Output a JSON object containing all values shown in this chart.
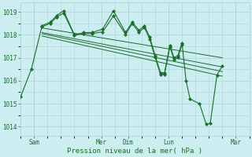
{
  "bg_color": "#cceef0",
  "grid_color": "#aad4d8",
  "line_color": "#1a6e2a",
  "ylabel_ticks": [
    1014,
    1015,
    1016,
    1017,
    1018,
    1019
  ],
  "xlabel": "Pression niveau de la mer( hPa )",
  "x_tick_labels": [
    "Sam",
    "Mer",
    "Dim",
    "Lun",
    "Mar"
  ],
  "x_tick_positions": [
    1,
    6,
    8,
    11,
    16
  ],
  "xlim": [
    0,
    17
  ],
  "ylim": [
    1013.6,
    1019.4
  ],
  "series0": [
    [
      0,
      1015.3
    ],
    [
      0.8,
      1016.5
    ],
    [
      1.6,
      1018.4
    ],
    [
      2.2,
      1018.55
    ],
    [
      2.7,
      1018.85
    ],
    [
      3.2,
      1019.05
    ],
    [
      4.0,
      1018.0
    ],
    [
      4.7,
      1018.1
    ],
    [
      5.3,
      1018.1
    ],
    [
      6.1,
      1018.25
    ],
    [
      6.9,
      1019.05
    ],
    [
      7.8,
      1018.1
    ],
    [
      8.3,
      1018.55
    ],
    [
      8.8,
      1018.2
    ],
    [
      9.2,
      1018.4
    ],
    [
      9.6,
      1017.9
    ],
    [
      10.0,
      1017.1
    ],
    [
      10.4,
      1016.35
    ],
    [
      10.7,
      1016.35
    ],
    [
      11.1,
      1017.55
    ],
    [
      11.4,
      1017.0
    ],
    [
      11.7,
      1017.1
    ],
    [
      12.0,
      1017.65
    ],
    [
      12.3,
      1016.0
    ],
    [
      12.6,
      1015.2
    ],
    [
      13.3,
      1015.0
    ],
    [
      13.8,
      1014.1
    ],
    [
      14.1,
      1014.15
    ],
    [
      14.6,
      1016.25
    ],
    [
      15.0,
      1016.65
    ]
  ],
  "series1": [
    [
      1.6,
      1018.35
    ],
    [
      2.2,
      1018.5
    ],
    [
      2.7,
      1018.78
    ],
    [
      3.2,
      1018.95
    ],
    [
      4.0,
      1017.98
    ],
    [
      4.7,
      1018.05
    ],
    [
      5.3,
      1018.05
    ],
    [
      6.1,
      1018.13
    ],
    [
      6.9,
      1018.82
    ],
    [
      7.8,
      1018.03
    ],
    [
      8.3,
      1018.48
    ],
    [
      8.8,
      1018.12
    ],
    [
      9.2,
      1018.32
    ],
    [
      9.6,
      1017.82
    ],
    [
      10.0,
      1017.02
    ],
    [
      10.4,
      1016.28
    ],
    [
      10.7,
      1016.28
    ],
    [
      11.1,
      1017.48
    ],
    [
      11.4,
      1016.93
    ],
    [
      11.7,
      1017.02
    ],
    [
      12.0,
      1017.58
    ]
  ],
  "trend_lines": [
    {
      "x": [
        1.6,
        15.0
      ],
      "y": [
        1018.3,
        1017.0
      ]
    },
    {
      "x": [
        1.6,
        15.0
      ],
      "y": [
        1018.1,
        1016.6
      ]
    },
    {
      "x": [
        1.6,
        15.0
      ],
      "y": [
        1018.05,
        1016.4
      ]
    },
    {
      "x": [
        1.6,
        15.0
      ],
      "y": [
        1017.95,
        1016.2
      ]
    }
  ],
  "vline_positions": [
    1,
    6,
    8,
    11,
    16
  ]
}
